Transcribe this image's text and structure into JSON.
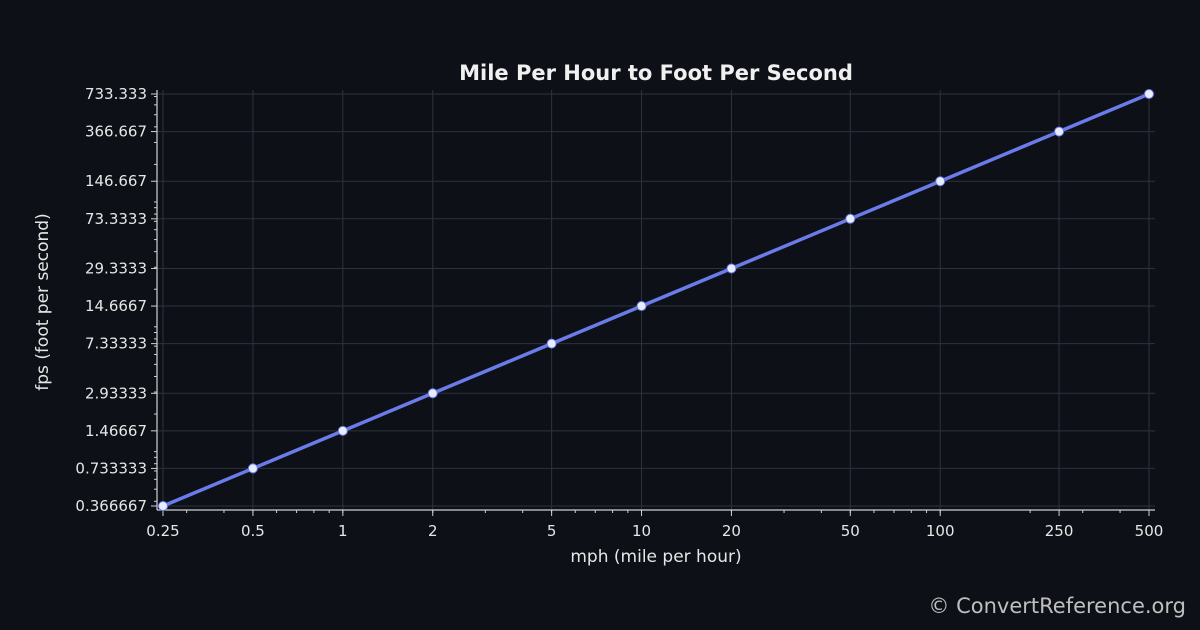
{
  "chart_data": {
    "type": "line",
    "title": "Mile Per Hour to Foot Per Second",
    "xlabel": "mph (mile per hour)",
    "ylabel": "fps (foot per second)",
    "x_scale": "log",
    "y_scale": "log",
    "xlim": [
      0.25,
      500
    ],
    "ylim": [
      0.366667,
      733.333
    ],
    "x_tick_labels": [
      "0.25",
      "0.5",
      "1",
      "2",
      "5",
      "10",
      "20",
      "50",
      "100",
      "250",
      "500"
    ],
    "y_tick_labels": [
      "0.366667",
      "0.733333",
      "1.46667",
      "2.93333",
      "7.33333",
      "14.6667",
      "29.3333",
      "73.3333",
      "146.667",
      "366.667",
      "733.333"
    ],
    "grid": true,
    "series": [
      {
        "color": "#6b7bea",
        "x": [
          0.25,
          0.5,
          1,
          2,
          5,
          10,
          20,
          50,
          100,
          250,
          500
        ],
        "y": [
          0.366667,
          0.733333,
          1.46667,
          2.93333,
          7.33333,
          14.6667,
          29.3333,
          73.3333,
          146.667,
          366.667,
          733.333
        ]
      }
    ]
  },
  "footer": {
    "copyright": "© ConvertReference.org"
  }
}
